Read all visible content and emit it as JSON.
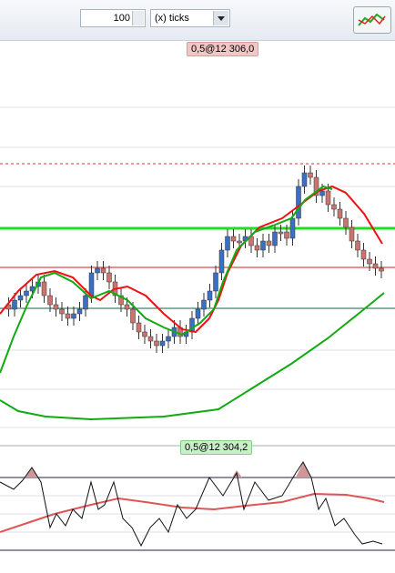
{
  "toolbar": {
    "count": "100",
    "unit": "(x) ticks"
  },
  "price_chart": {
    "crosshair_label": "0,5@12 306,0"
  },
  "oscillator": {
    "crosshair_label": "0,5@12 304,2"
  }
}
